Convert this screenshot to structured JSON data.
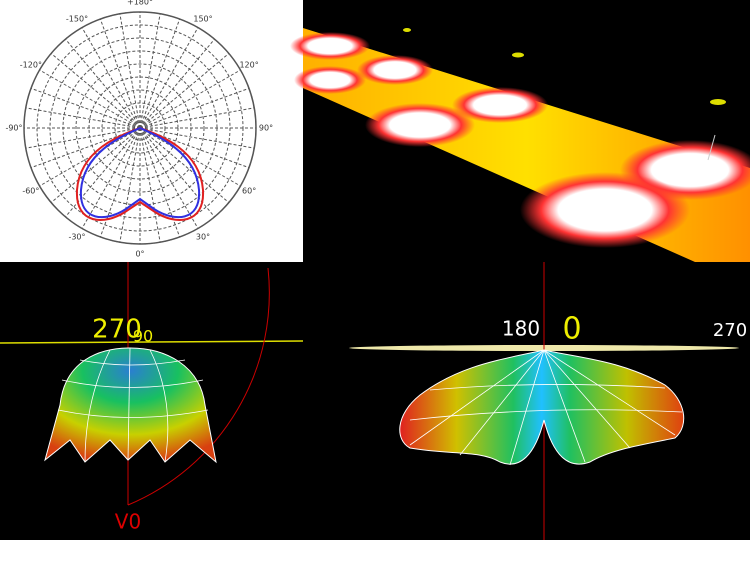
{
  "polar_plot": {
    "angle_labels": [
      "+180°",
      "150°",
      "120°",
      "90°",
      "60°",
      "30°",
      "0°",
      "-30°",
      "-60°",
      "-90°",
      "-120°",
      "-150°"
    ]
  },
  "left_render": {
    "labels": [
      "270",
      "90",
      "V0"
    ]
  },
  "right_render": {
    "labels": [
      "180",
      "0",
      "270"
    ]
  }
}
